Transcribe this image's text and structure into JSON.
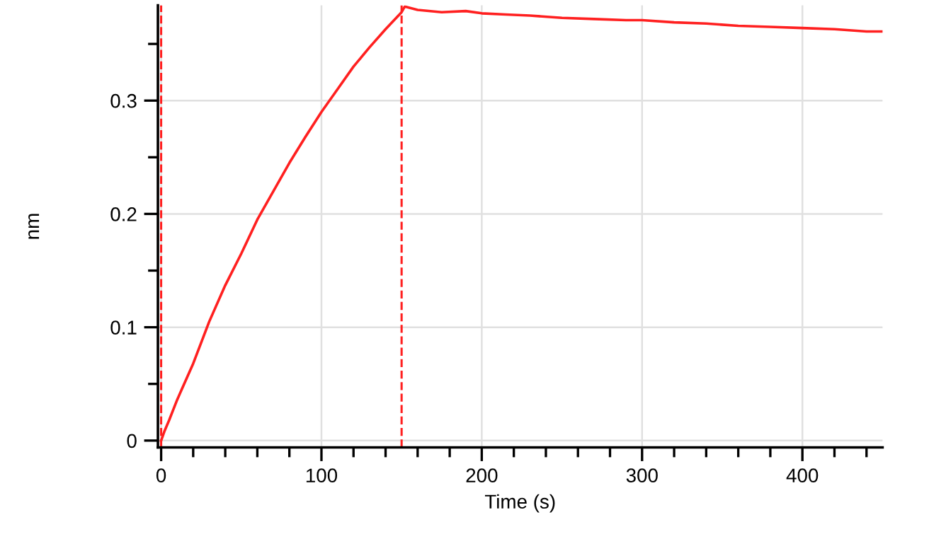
{
  "chart_data": {
    "type": "line",
    "xlabel": "Time (s)",
    "ylabel": "nm",
    "xlim": [
      -2,
      450
    ],
    "xticks": [
      0,
      100,
      200,
      300,
      400
    ],
    "ylim": [
      -0.006,
      0.384
    ],
    "yticks": [
      0,
      0.1,
      0.2,
      0.3
    ],
    "grid": true,
    "marker": "none",
    "line_style": "solid",
    "series": [
      {
        "color": "#ff2020",
        "x": [
          0,
          2,
          5,
          10,
          20,
          30,
          40,
          50,
          60,
          70,
          80,
          90,
          100,
          110,
          120,
          130,
          140,
          150,
          152,
          160,
          175,
          190,
          200,
          215,
          230,
          250,
          270,
          290,
          300,
          320,
          340,
          360,
          380,
          400,
          420,
          440,
          450
        ],
        "values": [
          0.0,
          0.008,
          0.018,
          0.036,
          0.068,
          0.105,
          0.137,
          0.165,
          0.195,
          0.22,
          0.245,
          0.268,
          0.29,
          0.31,
          0.33,
          0.347,
          0.363,
          0.378,
          0.383,
          0.38,
          0.378,
          0.379,
          0.377,
          0.376,
          0.375,
          0.373,
          0.372,
          0.371,
          0.371,
          0.369,
          0.368,
          0.366,
          0.365,
          0.364,
          0.363,
          0.361,
          0.361
        ]
      }
    ],
    "ref_lines": [
      {
        "axis": "x",
        "value": 0,
        "color": "#ff2020",
        "line_style": "dashed"
      },
      {
        "axis": "x",
        "value": 150,
        "color": "#ff2020",
        "line_style": "dashed"
      }
    ]
  }
}
